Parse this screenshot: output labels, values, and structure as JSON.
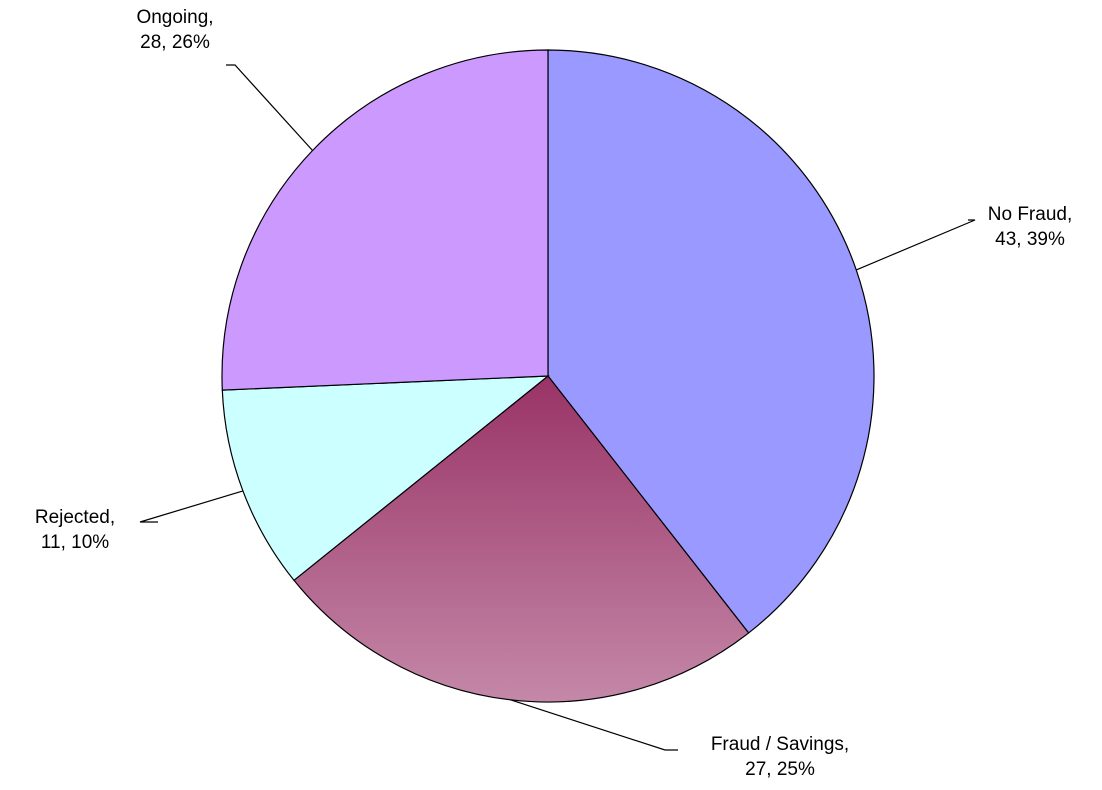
{
  "chart_data": {
    "type": "pie",
    "categories": [
      "No Fraud,",
      "Fraud / Savings,",
      "Rejected,",
      "Ongoing,"
    ],
    "values": [
      43,
      27,
      11,
      28
    ],
    "value_labels": [
      "43, 39%",
      "27, 25%",
      "11, 10%",
      "28, 26%"
    ],
    "colors": [
      "#9999ff",
      "#993366",
      "#ccffff",
      "#cc99ff"
    ]
  }
}
